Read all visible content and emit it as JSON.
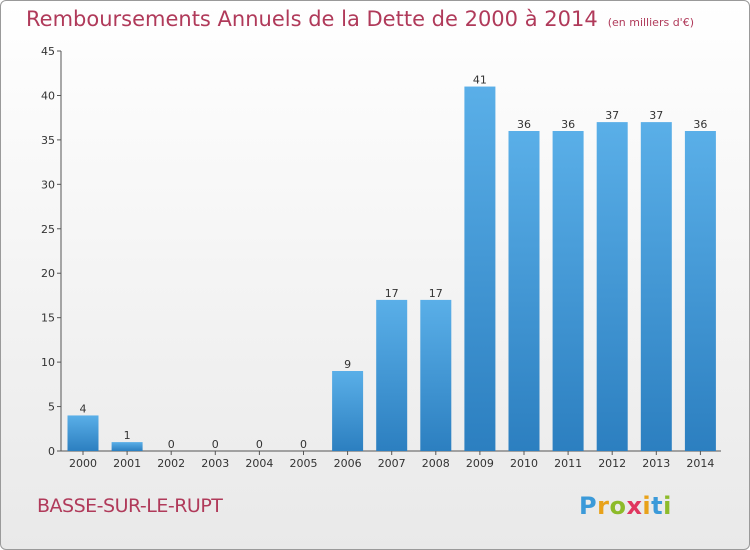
{
  "title": "Remboursements Annuels de la Dette de 2000 à 2014",
  "subtitle": "(en milliers d'€)",
  "commune": "BASSE-SUR-LE-RUPT",
  "logo": {
    "letters": [
      "P",
      "r",
      "o",
      "x",
      "i",
      "t",
      "i"
    ],
    "colors": [
      "#3b9ad9",
      "#e8a21a",
      "#8dbb2a",
      "#e0365f",
      "#e8a21a",
      "#3b9ad9",
      "#8dbb2a"
    ]
  },
  "chart_data": {
    "type": "bar",
    "categories": [
      "2000",
      "2001",
      "2002",
      "2003",
      "2004",
      "2005",
      "2006",
      "2007",
      "2008",
      "2009",
      "2010",
      "2011",
      "2012",
      "2013",
      "2014"
    ],
    "values": [
      4,
      1,
      0,
      0,
      0,
      0,
      9,
      17,
      17,
      41,
      36,
      36,
      37,
      37,
      36
    ],
    "data_labels": [
      "4",
      "1",
      "0",
      "0",
      "0",
      "0",
      "9",
      "17",
      "17",
      "41",
      "36",
      "36",
      "37",
      "37",
      "36"
    ],
    "ylim": [
      0,
      45
    ],
    "yticks": [
      0,
      5,
      10,
      15,
      20,
      25,
      30,
      35,
      40,
      45
    ],
    "grid": false,
    "bar_color_top": "#5aafe8",
    "bar_color_bottom": "#2c7fc0"
  }
}
